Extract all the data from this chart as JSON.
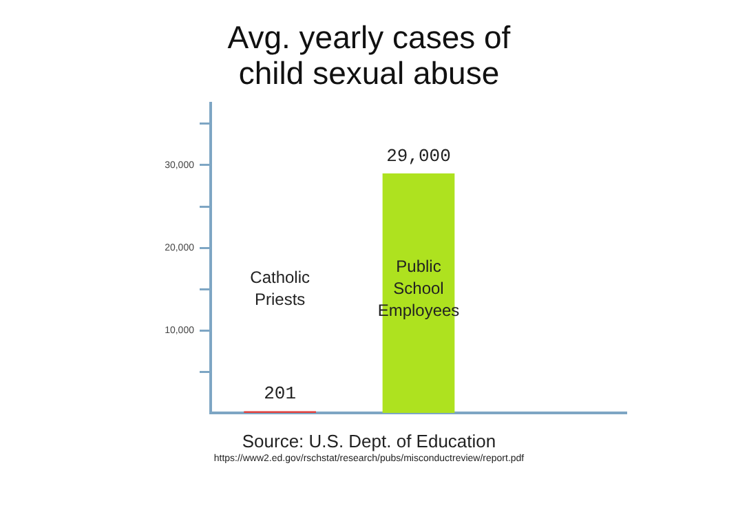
{
  "chart_data": {
    "type": "bar",
    "title": "Avg. yearly cases of child sexual abuse",
    "categories": [
      "Catholic Priests",
      "Public School Employees",
      null
    ],
    "values": [
      201,
      29000,
      null
    ],
    "colors": [
      "#e0403c",
      "#aee21f",
      null
    ],
    "value_labels": [
      "201",
      "29,000",
      null
    ],
    "ylim": [
      0,
      37500
    ],
    "yticks": [
      {
        "value": 5000,
        "label": null
      },
      {
        "value": 10000,
        "label": "10,000"
      },
      {
        "value": 15000,
        "label": null
      },
      {
        "value": 20000,
        "label": "20,000"
      },
      {
        "value": 25000,
        "label": null
      },
      {
        "value": 30000,
        "label": "30,000"
      },
      {
        "value": 35000,
        "label": null
      }
    ],
    "grid": false,
    "legend": false,
    "annotations": [
      "Source: U.S. Dept. of Education",
      "https://www2.ed.gov/rschstat/research/pubs/misconductreview/report.pdf"
    ]
  }
}
